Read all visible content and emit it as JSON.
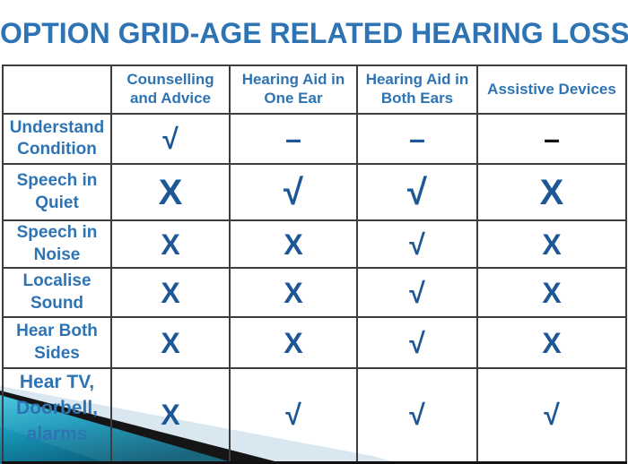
{
  "title": "OPTION GRID-AGE RELATED HEARING LOSS",
  "table": {
    "columns": [
      "",
      "Counselling and Advice",
      "Hearing Aid in One Ear",
      "Hearing Aid in Both Ears",
      "Assistive Devices"
    ],
    "rows": [
      {
        "label": "Understand Condition",
        "cells": [
          {
            "s": "√",
            "c": "blue"
          },
          {
            "s": "–",
            "c": "blue"
          },
          {
            "s": "–",
            "c": "blue"
          },
          {
            "s": "–",
            "c": "black"
          }
        ]
      },
      {
        "label": "Speech in Quiet",
        "cells": [
          {
            "s": "X",
            "c": "blue"
          },
          {
            "s": "√",
            "c": "blue"
          },
          {
            "s": "√",
            "c": "blue"
          },
          {
            "s": "X",
            "c": "blue"
          }
        ]
      },
      {
        "label": "Speech in Noise",
        "cells": [
          {
            "s": "X",
            "c": "blue"
          },
          {
            "s": "X",
            "c": "blue"
          },
          {
            "s": "√",
            "c": "blue"
          },
          {
            "s": "X",
            "c": "blue"
          }
        ]
      },
      {
        "label": "Localise Sound",
        "cells": [
          {
            "s": "X",
            "c": "blue"
          },
          {
            "s": "X",
            "c": "blue"
          },
          {
            "s": "√",
            "c": "blue"
          },
          {
            "s": "X",
            "c": "blue"
          }
        ]
      },
      {
        "label": "Hear Both Sides",
        "cells": [
          {
            "s": "X",
            "c": "blue"
          },
          {
            "s": "X",
            "c": "blue"
          },
          {
            "s": "√",
            "c": "blue"
          },
          {
            "s": "X",
            "c": "blue"
          }
        ]
      },
      {
        "label": "Hear TV, Doorbell, alarms",
        "cells": [
          {
            "s": "X",
            "c": "blue"
          },
          {
            "s": "√",
            "c": "blue"
          },
          {
            "s": "√",
            "c": "blue"
          },
          {
            "s": "√",
            "c": "blue"
          }
        ]
      }
    ]
  },
  "colors": {
    "accent_blue": "#2E74B5",
    "symbol_blue": "#1D5796",
    "black_dash": "#101010",
    "teal_ribbon_light": "#3FC3DE",
    "teal_ribbon_dark": "#0A5A74",
    "pale_blue_ribbon": "#D9E7F0",
    "black_ribbon": "#151515",
    "grid_line": "#3D3D3D"
  }
}
